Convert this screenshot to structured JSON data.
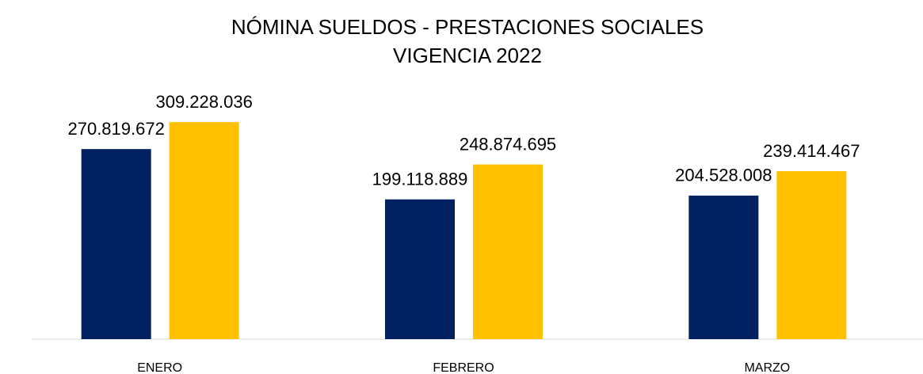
{
  "chart_data": {
    "type": "bar",
    "title": "NÓMINA SUELDOS -  PRESTACIONES SOCIALES",
    "subtitle": "VIGENCIA 2022",
    "categories": [
      "ENERO",
      "FEBRERO",
      "MARZO"
    ],
    "series": [
      {
        "color": "#002060",
        "values": [
          270819672,
          199118889,
          204528008
        ],
        "value_labels": [
          "270.819.672",
          "199.118.889",
          "204.528.008"
        ]
      },
      {
        "color": "#FFC000",
        "values": [
          309228036,
          248874695,
          239414467
        ],
        "value_labels": [
          "309.228.036",
          "248.874.695",
          "239.414.467"
        ]
      }
    ],
    "ylim": [
      0,
      350000000
    ]
  }
}
